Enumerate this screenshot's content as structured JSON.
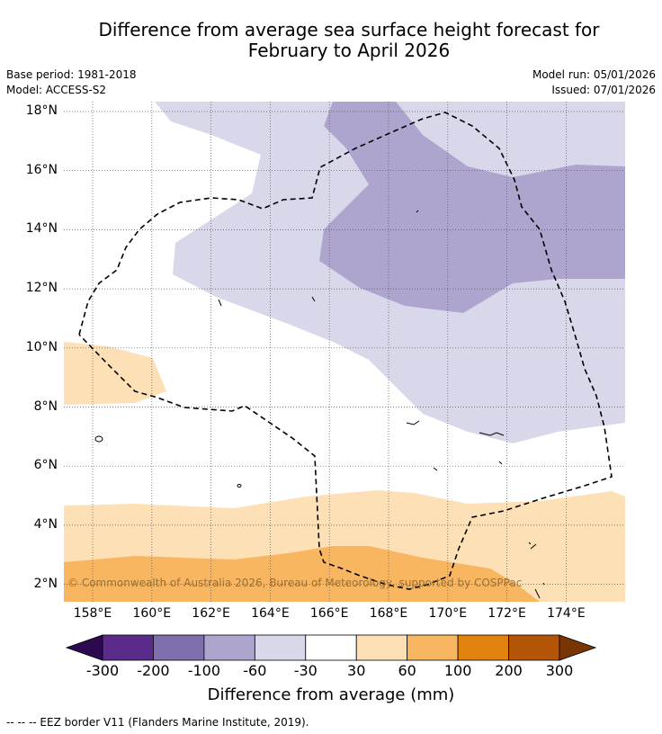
{
  "title": {
    "line1": "Difference from average sea surface height forecast for",
    "line2": "February to April 2026"
  },
  "meta": {
    "base_period": "Base period: 1981-2018",
    "model": "Model: ACCESS-S2",
    "model_run": "Model run: 05/01/2026",
    "issued": "Issued: 07/01/2026"
  },
  "axes": {
    "lat_labels": [
      "18°N",
      "16°N",
      "14°N",
      "12°N",
      "10°N",
      "8°N",
      "6°N",
      "4°N",
      "2°N"
    ],
    "lon_labels": [
      "158°E",
      "160°E",
      "162°E",
      "164°E",
      "166°E",
      "168°E",
      "170°E",
      "172°E",
      "174°E"
    ]
  },
  "copyright": "© Commonwealth of Australia 2026, Bureau of Meteorology, supported by COSPPac",
  "colorbar": {
    "ticks": [
      "-300",
      "-200",
      "-100",
      "-60",
      "-30",
      "30",
      "60",
      "100",
      "200",
      "300"
    ],
    "colors": [
      "#2d0a4f",
      "#5a2b8a",
      "#7f6fae",
      "#aea5cf",
      "#d8d8ea",
      "#ffffff",
      "#fde0b5",
      "#f9b660",
      "#e2820f",
      "#b45406",
      "#7a3505"
    ],
    "label": "Difference from average (mm)"
  },
  "footnote": "--  --  -- EEZ border V11 (Flanders Marine Institute, 2019)."
}
